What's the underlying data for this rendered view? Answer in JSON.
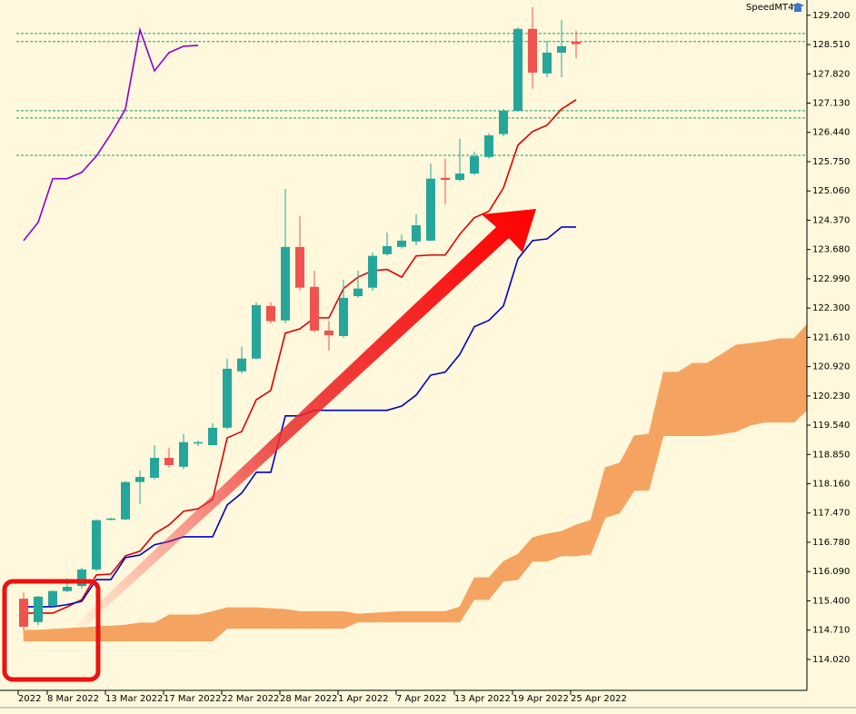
{
  "chart_data": {
    "type": "candlestick",
    "annotations": [
      "SpeedMT4"
    ],
    "categories": [
      "2022",
      null,
      "8 Mar 2022",
      null,
      null,
      null,
      "13 Mar 2022",
      null,
      null,
      null,
      "17 Mar 2022",
      null,
      null,
      null,
      "22 Mar 2022",
      null,
      null,
      null,
      "28 Mar 2022",
      null,
      null,
      null,
      "1 Apr 2022",
      null,
      null,
      null,
      "7 Apr 2022",
      null,
      null,
      null,
      "13 Apr 2022",
      null,
      null,
      null,
      "19 Apr 2022",
      null,
      null,
      null,
      "25 Apr 2022",
      null,
      null,
      null,
      null,
      null,
      null,
      null,
      null,
      null,
      null,
      null,
      null,
      null,
      null,
      null,
      null
    ],
    "open": [
      115.45,
      114.9,
      115.28,
      115.63,
      115.75,
      116.14,
      117.32,
      117.32,
      118.2,
      118.3,
      118.77,
      118.56,
      119.12,
      119.07,
      119.48,
      120.81,
      121.11,
      122.35,
      122.01,
      123.74,
      122.8,
      121.77,
      121.64,
      122.58,
      122.78,
      123.57,
      123.74,
      123.87,
      123.89,
      125.37,
      125.32,
      125.47,
      125.86,
      126.4,
      126.95,
      128.88,
      127.83,
      128.32,
      128.58,
      null,
      null,
      null,
      null,
      null,
      null,
      null,
      null,
      null,
      null,
      null,
      null,
      null,
      null,
      null,
      null
    ],
    "high": [
      115.6,
      115.52,
      115.65,
      115.93,
      116.18,
      117.32,
      117.36,
      118.22,
      118.47,
      119.07,
      119.01,
      119.33,
      119.18,
      119.59,
      121.11,
      121.39,
      122.43,
      122.43,
      125.11,
      124.47,
      123.18,
      121.99,
      122.97,
      123.18,
      123.61,
      124.08,
      124.04,
      124.51,
      125.71,
      125.82,
      126.29,
      125.99,
      126.42,
      126.99,
      128.92,
      129.39,
      128.6,
      129.09,
      128.84,
      null,
      null,
      null,
      null,
      null,
      null,
      null,
      null,
      null,
      null,
      null,
      null,
      null,
      null,
      null,
      null
    ],
    "low": [
      114.71,
      114.83,
      115.26,
      115.6,
      115.69,
      116.1,
      117.3,
      117.3,
      117.68,
      118.26,
      118.54,
      118.5,
      119.05,
      119.07,
      119.44,
      120.76,
      121.09,
      121.94,
      121.94,
      122.71,
      121.73,
      121.3,
      121.6,
      122.54,
      122.71,
      123.53,
      123.7,
      123.78,
      123.89,
      124.75,
      125.28,
      125.43,
      125.82,
      126.35,
      126.93,
      127.47,
      127.74,
      127.74,
      128.19,
      null,
      null,
      null,
      null,
      null,
      null,
      null,
      null,
      null,
      null,
      null,
      null,
      null,
      null,
      null,
      null
    ],
    "close": [
      114.79,
      115.5,
      115.63,
      115.73,
      116.14,
      117.3,
      117.34,
      118.2,
      118.32,
      118.77,
      118.6,
      119.14,
      119.14,
      119.48,
      120.87,
      121.11,
      122.37,
      121.99,
      123.74,
      122.78,
      121.77,
      121.66,
      122.54,
      122.76,
      123.53,
      123.76,
      123.89,
      124.25,
      125.35,
      125.32,
      125.47,
      125.88,
      126.37,
      126.95,
      128.88,
      127.85,
      128.32,
      128.47,
      128.52,
      null,
      null,
      null,
      null,
      null,
      null,
      null,
      null,
      null,
      null,
      null,
      null,
      null,
      null,
      null,
      null
    ],
    "up_color": "#26a69a",
    "down_color": "#ef5350",
    "series": [
      {
        "color": "#e00000",
        "values": [
          115.11,
          115.11,
          115.11,
          115.26,
          115.43,
          116.01,
          116.03,
          116.46,
          116.57,
          116.98,
          117.19,
          117.51,
          117.57,
          117.79,
          119.24,
          119.39,
          120.14,
          120.36,
          121.71,
          121.81,
          122.07,
          122.07,
          122.76,
          123.03,
          123.18,
          123.21,
          123.03,
          123.53,
          123.55,
          123.55,
          124.04,
          124.43,
          124.58,
          125.13,
          126.14,
          126.46,
          126.61,
          126.99,
          127.21,
          null,
          null,
          null,
          null,
          null,
          null,
          null,
          null,
          null,
          null,
          null,
          null,
          null,
          null,
          null,
          null
        ]
      },
      {
        "color": "#0000c8",
        "values": [
          115.26,
          115.26,
          115.26,
          115.31,
          115.39,
          115.9,
          115.9,
          116.42,
          116.48,
          116.72,
          116.8,
          116.91,
          116.91,
          116.91,
          117.66,
          117.94,
          118.43,
          118.43,
          119.76,
          119.76,
          119.89,
          119.89,
          119.89,
          119.89,
          119.89,
          119.89,
          119.99,
          120.25,
          120.72,
          120.79,
          121.21,
          121.86,
          122.01,
          122.35,
          123.46,
          123.89,
          123.93,
          124.21,
          124.21,
          null,
          null,
          null,
          null,
          null,
          null,
          null,
          null,
          null,
          null,
          null,
          null,
          null,
          null,
          null,
          null
        ]
      },
      {
        "color": "#8a00d4",
        "values": [
          123.89,
          124.32,
          125.35,
          125.35,
          125.5,
          125.88,
          126.4,
          126.99,
          128.86,
          127.89,
          128.32,
          128.47,
          128.49,
          null,
          null,
          null,
          null,
          null,
          null,
          null,
          null,
          null,
          null,
          null,
          null,
          null,
          null,
          null,
          null,
          null,
          null,
          null,
          null,
          null,
          null,
          null,
          null,
          null,
          null,
          null,
          null,
          null,
          null,
          null,
          null,
          null,
          null,
          null,
          null,
          null,
          null,
          null,
          null,
          null,
          null
        ]
      }
    ],
    "cloud": {
      "color": "#f4a460",
      "upper": [
        114.71,
        114.71,
        114.73,
        114.75,
        114.77,
        114.79,
        114.81,
        114.83,
        114.88,
        114.88,
        115.07,
        115.07,
        115.07,
        115.15,
        115.24,
        115.24,
        115.24,
        115.22,
        115.2,
        115.15,
        115.15,
        115.15,
        115.15,
        115.09,
        115.11,
        115.13,
        115.15,
        115.15,
        115.15,
        115.15,
        115.26,
        115.95,
        115.95,
        116.33,
        116.5,
        116.89,
        116.98,
        117.04,
        117.19,
        117.3,
        118.54,
        118.65,
        119.29,
        119.33,
        120.79,
        120.79,
        121.0,
        121.0,
        121.21,
        121.43,
        121.47,
        121.51,
        121.58,
        121.58,
        121.96
      ],
      "lower": [
        114.45,
        114.45,
        114.45,
        114.45,
        114.45,
        114.45,
        114.45,
        114.45,
        114.45,
        114.45,
        114.45,
        114.45,
        114.45,
        114.45,
        114.75,
        114.75,
        114.75,
        114.75,
        114.75,
        114.75,
        114.75,
        114.75,
        114.75,
        114.9,
        114.9,
        114.9,
        114.9,
        114.9,
        114.9,
        114.9,
        114.9,
        115.43,
        115.43,
        115.86,
        115.9,
        116.33,
        116.33,
        116.46,
        116.46,
        116.5,
        117.36,
        117.47,
        118.0,
        118.0,
        119.29,
        119.29,
        119.29,
        119.29,
        119.33,
        119.39,
        119.54,
        119.61,
        119.61,
        119.61,
        119.93
      ]
    },
    "levels": {
      "color": "#1f9a6a",
      "values": [
        128.77,
        128.58,
        126.95,
        126.78,
        125.9
      ]
    },
    "ylim": [
      113.29,
      129.56
    ],
    "yticks": [
      {
        "value": 129.2,
        "label": "129.200"
      },
      {
        "value": 128.51,
        "label": "128.510"
      },
      {
        "value": 127.82,
        "label": "127.820"
      },
      {
        "value": 127.13,
        "label": "127.130"
      },
      {
        "value": 126.44,
        "label": "126.440"
      },
      {
        "value": 125.75,
        "label": "125.750"
      },
      {
        "value": 125.06,
        "label": "125.060"
      },
      {
        "value": 124.37,
        "label": "124.370"
      },
      {
        "value": 123.68,
        "label": "123.680"
      },
      {
        "value": 122.99,
        "label": "122.990"
      },
      {
        "value": 122.3,
        "label": "122.300"
      },
      {
        "value": 121.61,
        "label": "121.610"
      },
      {
        "value": 120.92,
        "label": "120.920"
      },
      {
        "value": 120.23,
        "label": "120.230"
      },
      {
        "value": 119.54,
        "label": "119.540"
      },
      {
        "value": 118.85,
        "label": "118.850"
      },
      {
        "value": 118.16,
        "label": "118.160"
      },
      {
        "value": 117.47,
        "label": "117.470"
      },
      {
        "value": 116.78,
        "label": "116.780"
      },
      {
        "value": 116.09,
        "label": "116.090"
      },
      {
        "value": 115.4,
        "label": "115.400"
      },
      {
        "value": 114.71,
        "label": "114.710"
      },
      {
        "value": 114.02,
        "label": "114.020"
      }
    ]
  }
}
